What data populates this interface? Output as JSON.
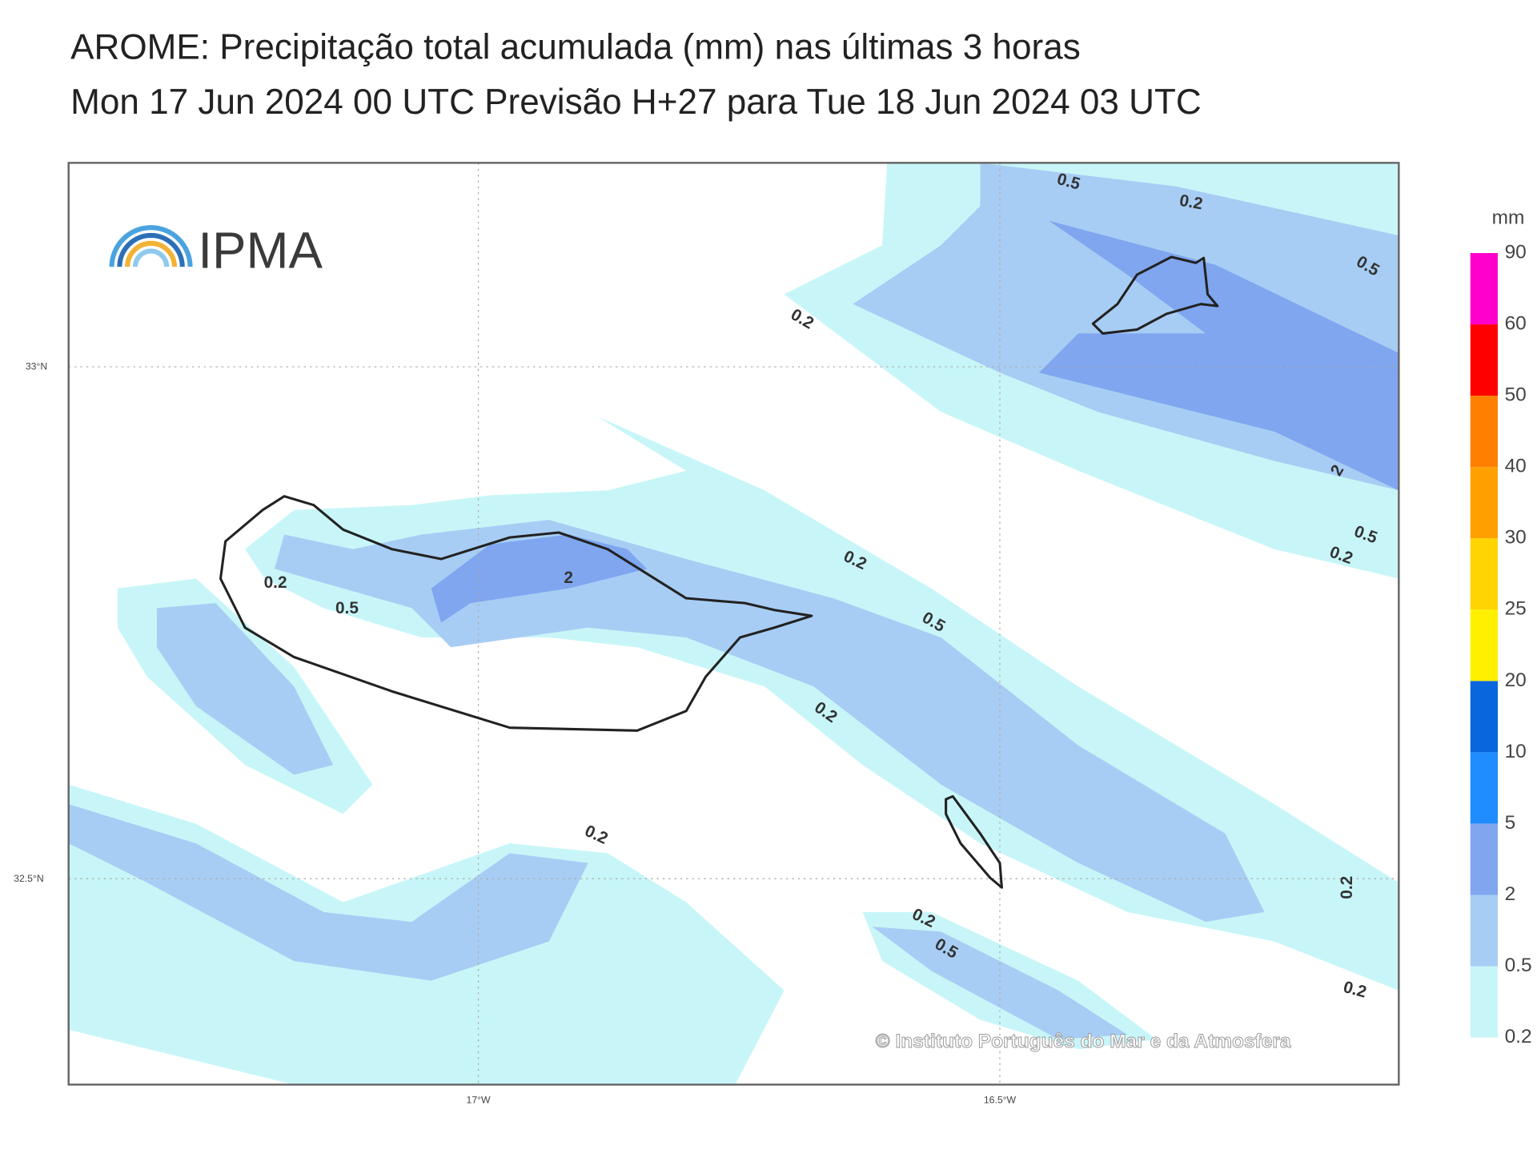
{
  "header": {
    "title": "AROME: Precipitação total acumulada (mm) nas últimas 3 horas",
    "subtitle": "Mon 17 Jun 2024 00 UTC Previsão H+27 para Tue 18 Jun 2024 03 UTC"
  },
  "logo": "IPMA",
  "axes": {
    "lat": [
      "33°N",
      "32.5°N"
    ],
    "lon": [
      "17°W",
      "16.5°W"
    ]
  },
  "contour_labels": [
    "0.5",
    "0.2",
    "0.5",
    "0.2",
    "2",
    "0.5",
    "0.2",
    "0.2",
    "0.5",
    "0.2",
    "0.2",
    "0.5",
    "2",
    "0.2",
    "0.2",
    "0.5",
    "0.2",
    "0.2"
  ],
  "copyright": "© Instituto Português do Mar e da Atmosfera",
  "colorbar": {
    "unit": "mm",
    "levels": [
      "0.2",
      "0.5",
      "2",
      "5",
      "10",
      "20",
      "25",
      "30",
      "40",
      "50",
      "60",
      "90"
    ],
    "colors": [
      "#c8f6f8",
      "#a8cdf4",
      "#7fa6ef",
      "#1f8cff",
      "#0a66dd",
      "#fff000",
      "#ffd400",
      "#ffa000",
      "#ff8000",
      "#ff0000",
      "#ff00cc"
    ]
  }
}
